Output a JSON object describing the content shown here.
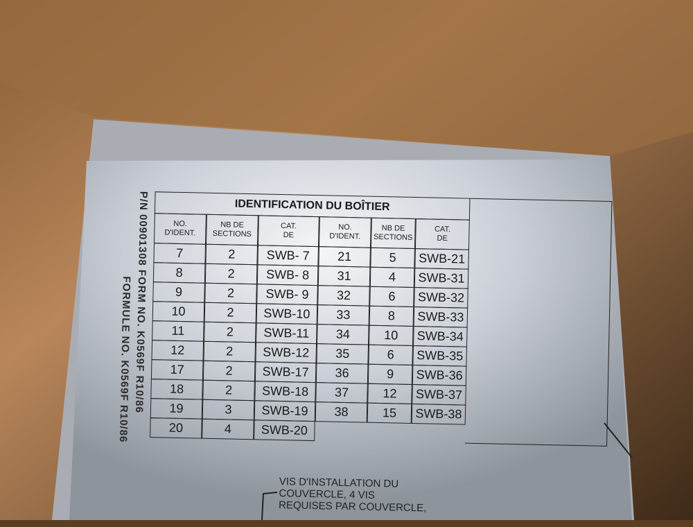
{
  "side_text": {
    "line1": "P/N 00901308 FORM NO. K0569F R10/86",
    "line2": "FORMULE NO. K0569F R10/86"
  },
  "table": {
    "title": "IDENTIFICATION DU BOÎTIER",
    "headers": [
      [
        "NO.",
        "D'IDENT."
      ],
      [
        "NB DE",
        "SECTIONS"
      ],
      [
        "CAT.",
        "DE"
      ],
      [
        "NO.",
        "D'IDENT."
      ],
      [
        "NB DE",
        "SECTIONS"
      ],
      [
        "CAT.",
        "DE"
      ]
    ],
    "left_rows": [
      [
        "7",
        "2",
        "SWB- 7"
      ],
      [
        "8",
        "2",
        "SWB- 8"
      ],
      [
        "9",
        "2",
        "SWB- 9"
      ],
      [
        "10",
        "2",
        "SWB-10"
      ],
      [
        "11",
        "2",
        "SWB-11"
      ],
      [
        "12",
        "2",
        "SWB-12"
      ],
      [
        "17",
        "2",
        "SWB-17"
      ],
      [
        "18",
        "2",
        "SWB-18"
      ],
      [
        "19",
        "3",
        "SWB-19"
      ],
      [
        "20",
        "4",
        "SWB-20"
      ]
    ],
    "right_rows": [
      [
        "21",
        "5",
        "SWB-21"
      ],
      [
        "31",
        "4",
        "SWB-31"
      ],
      [
        "32",
        "6",
        "SWB-32"
      ],
      [
        "33",
        "8",
        "SWB-33"
      ],
      [
        "34",
        "10",
        "SWB-34"
      ],
      [
        "35",
        "6",
        "SWB-35"
      ],
      [
        "36",
        "9",
        "SWB-36"
      ],
      [
        "37",
        "12",
        "SWB-37"
      ],
      [
        "38",
        "15",
        "SWB-38"
      ]
    ]
  },
  "note": [
    "VIS D'INSTALLATION DU",
    "COUVERCLE, 4 VIS",
    "REQUISES PAR COUVERCLE,"
  ]
}
